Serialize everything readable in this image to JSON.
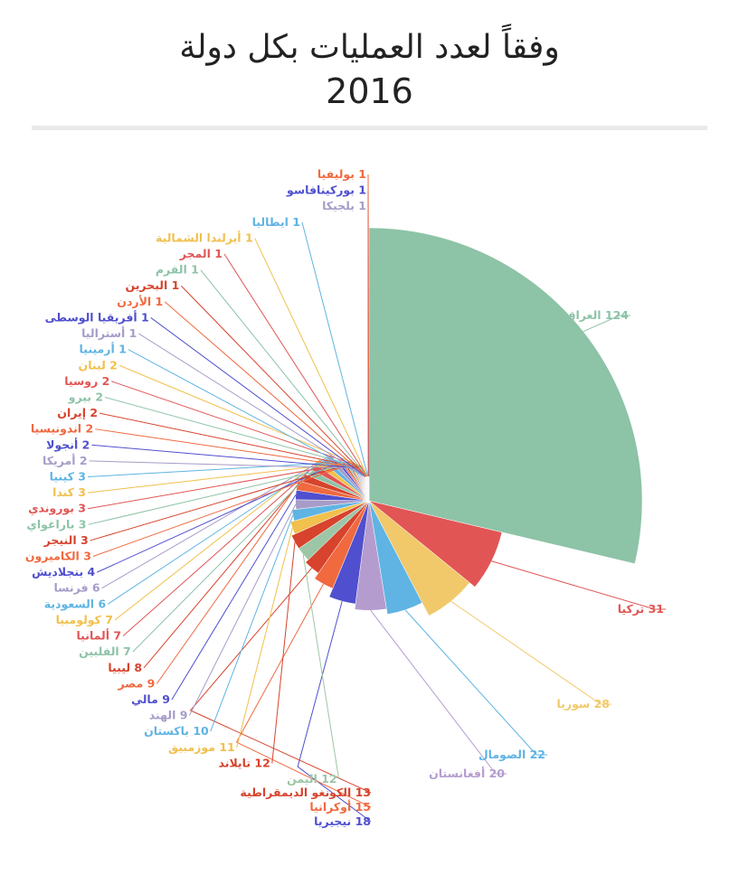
{
  "chart_data": {
    "type": "pie",
    "title": "وفقاً لعدد العمليات بكل دولة",
    "subtitle": "2016",
    "slices": [
      {
        "label": "العراق",
        "value": 124,
        "color": "#8dc3a7"
      },
      {
        "label": "تركيا",
        "value": 31,
        "color": "#e15555"
      },
      {
        "label": "سوريا",
        "value": 28,
        "color": "#f1c96a"
      },
      {
        "label": "الصومال",
        "value": 22,
        "color": "#5fb4e3"
      },
      {
        "label": "أفغانستان",
        "value": 20,
        "color": "#b59ccf"
      },
      {
        "label": "نيجيريا",
        "value": 18,
        "color": "#4f4fcf"
      },
      {
        "label": "أوكرانيا",
        "value": 15,
        "color": "#f0693f"
      },
      {
        "label": "الكونغو الديمقراطية",
        "value": 13,
        "color": "#d7432d"
      },
      {
        "label": "اليمن",
        "value": 12,
        "color": "#9dc6a7"
      },
      {
        "label": "تايلاند",
        "value": 12,
        "color": "#d7432d"
      },
      {
        "label": "موزمبيق",
        "value": 11,
        "color": "#f1c04d"
      },
      {
        "label": "باكستان",
        "value": 10,
        "color": "#5fb4e3"
      },
      {
        "label": "الهند",
        "value": 9,
        "color": "#a79cc8"
      },
      {
        "label": "مالي",
        "value": 9,
        "color": "#4f4fcf"
      },
      {
        "label": "مصر",
        "value": 9,
        "color": "#f0693f"
      },
      {
        "label": "ليبيا",
        "value": 8,
        "color": "#d7432d"
      },
      {
        "label": "الفلبين",
        "value": 7,
        "color": "#8dc3a7"
      },
      {
        "label": "ألمانيا",
        "value": 7,
        "color": "#e15555"
      },
      {
        "label": "كولومبيا",
        "value": 7,
        "color": "#f1c04d"
      },
      {
        "label": "السعودية",
        "value": 6,
        "color": "#5fb4e3"
      },
      {
        "label": "فرنسا",
        "value": 6,
        "color": "#a79cc8"
      },
      {
        "label": "بنجلاديش",
        "value": 4,
        "color": "#4f4fcf"
      },
      {
        "label": "الكاميرون",
        "value": 3,
        "color": "#f0693f"
      },
      {
        "label": "النيجر",
        "value": 3,
        "color": "#d7432d"
      },
      {
        "label": "باراغواي",
        "value": 3,
        "color": "#8dc3a7"
      },
      {
        "label": "بوروندي",
        "value": 3,
        "color": "#e15555"
      },
      {
        "label": "كندا",
        "value": 3,
        "color": "#f1c04d"
      },
      {
        "label": "كينيا",
        "value": 3,
        "color": "#5fb4e3"
      },
      {
        "label": "أمريكا",
        "value": 2,
        "color": "#a79cc8"
      },
      {
        "label": "أنجولا",
        "value": 2,
        "color": "#4f4fcf"
      },
      {
        "label": "اندونيسيا",
        "value": 2,
        "color": "#f0693f"
      },
      {
        "label": "إيران",
        "value": 2,
        "color": "#d7432d"
      },
      {
        "label": "بيرو",
        "value": 2,
        "color": "#8dc3a7"
      },
      {
        "label": "روسيا",
        "value": 2,
        "color": "#e15555"
      },
      {
        "label": "لبنان",
        "value": 2,
        "color": "#f1c04d"
      },
      {
        "label": "أرمينيا",
        "value": 1,
        "color": "#5fb4e3"
      },
      {
        "label": "أستراليا",
        "value": 1,
        "color": "#a79cc8"
      },
      {
        "label": "أفريقيا الوسطى",
        "value": 1,
        "color": "#4f4fcf"
      },
      {
        "label": "الأردن",
        "value": 1,
        "color": "#f0693f"
      },
      {
        "label": "البحرين",
        "value": 1,
        "color": "#d7432d"
      },
      {
        "label": "القرم",
        "value": 1,
        "color": "#8dc3a7"
      },
      {
        "label": "المجر",
        "value": 1,
        "color": "#e15555"
      },
      {
        "label": "أيرلندا الشمالية",
        "value": 1,
        "color": "#f1c04d"
      },
      {
        "label": "ايطاليا",
        "value": 1,
        "color": "#5fb4e3"
      },
      {
        "label": "بلجيكا",
        "value": 1,
        "color": "#a79cc8"
      },
      {
        "label": "بوركينافاسو",
        "value": 1,
        "color": "#4f4fcf"
      },
      {
        "label": "بوليفيا",
        "value": 1,
        "color": "#f0693f"
      }
    ]
  }
}
